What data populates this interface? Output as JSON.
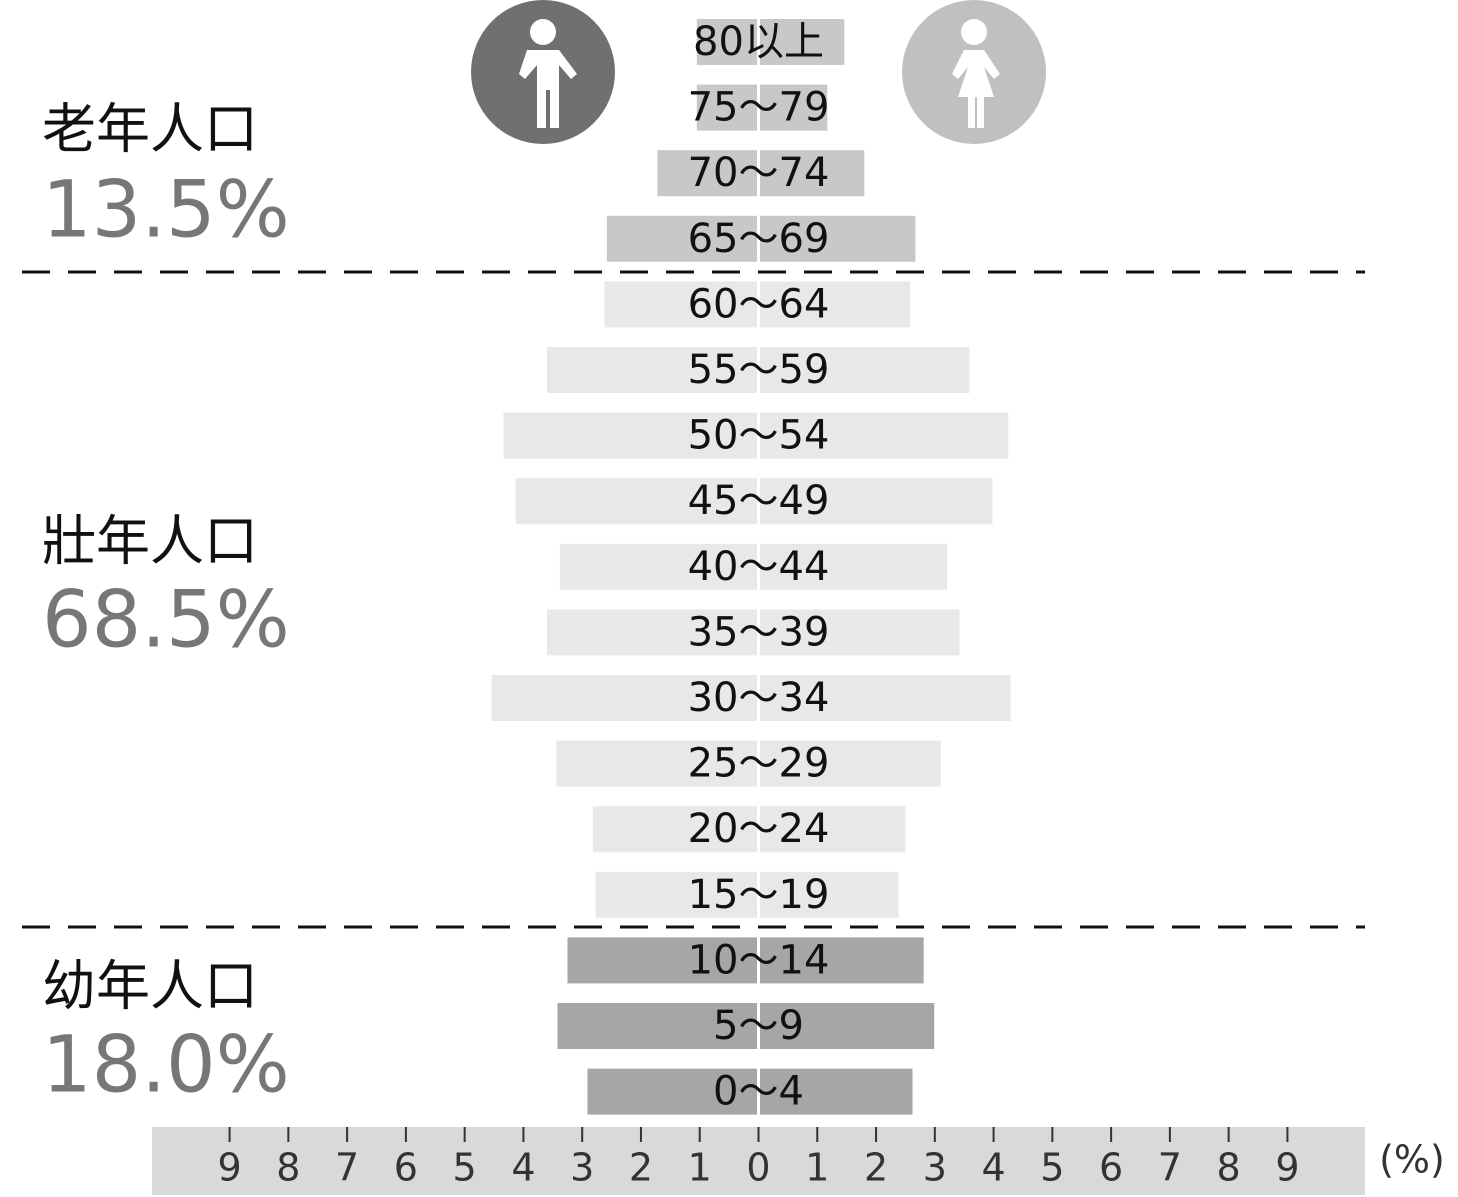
{
  "chart_data": {
    "type": "population-pyramid",
    "xlim": [
      -10.32,
      10.32
    ],
    "xticks": [
      {
        "value": -9,
        "label": "9"
      },
      {
        "value": -8,
        "label": "8"
      },
      {
        "value": -7,
        "label": "7"
      },
      {
        "value": -6,
        "label": "6"
      },
      {
        "value": -5,
        "label": "5"
      },
      {
        "value": -4,
        "label": "4"
      },
      {
        "value": -3,
        "label": "3"
      },
      {
        "value": -2,
        "label": "2"
      },
      {
        "value": -1,
        "label": "1"
      },
      0,
      1,
      2,
      3,
      4,
      5,
      6,
      7,
      8,
      9
    ],
    "x_unit": "(%)",
    "groups": [
      {
        "label": "老年人口",
        "value": 13.5,
        "value_label": "13.5%",
        "color": "#c8c8c8",
        "categories": [
          "80以上",
          "75～79",
          "70～74",
          "65～69"
        ],
        "series": [
          {
            "values": [
              1.05,
              1.05,
              1.72,
              2.58
            ]
          },
          {
            "values": [
              1.46,
              1.17,
              1.8,
              2.67
            ]
          }
        ]
      },
      {
        "label": "壯年人口",
        "value": 68.5,
        "value_label": "68.5%",
        "color": "#e8e8e8",
        "categories": [
          "60～64",
          "55～59",
          "50～54",
          "45～49",
          "40～44",
          "35～39",
          "30～34",
          "25～29",
          "20～24",
          "15～19"
        ],
        "series": [
          {
            "values": [
              2.62,
              3.6,
              4.34,
              4.13,
              3.38,
              3.6,
              4.54,
              3.44,
              2.82,
              2.77
            ]
          },
          {
            "values": [
              2.58,
              3.59,
              4.25,
              3.98,
              3.21,
              3.42,
              4.29,
              3.1,
              2.5,
              2.38
            ]
          }
        ]
      },
      {
        "label": "幼年人口",
        "value": 18.0,
        "value_label": "18.0%",
        "color": "#a6a6a6",
        "categories": [
          "10～14",
          "5～9",
          "0～4"
        ],
        "series": [
          {
            "values": [
              3.25,
              3.42,
              2.91
            ]
          },
          {
            "values": [
              2.81,
              2.99,
              2.62
            ]
          }
        ]
      }
    ]
  }
}
